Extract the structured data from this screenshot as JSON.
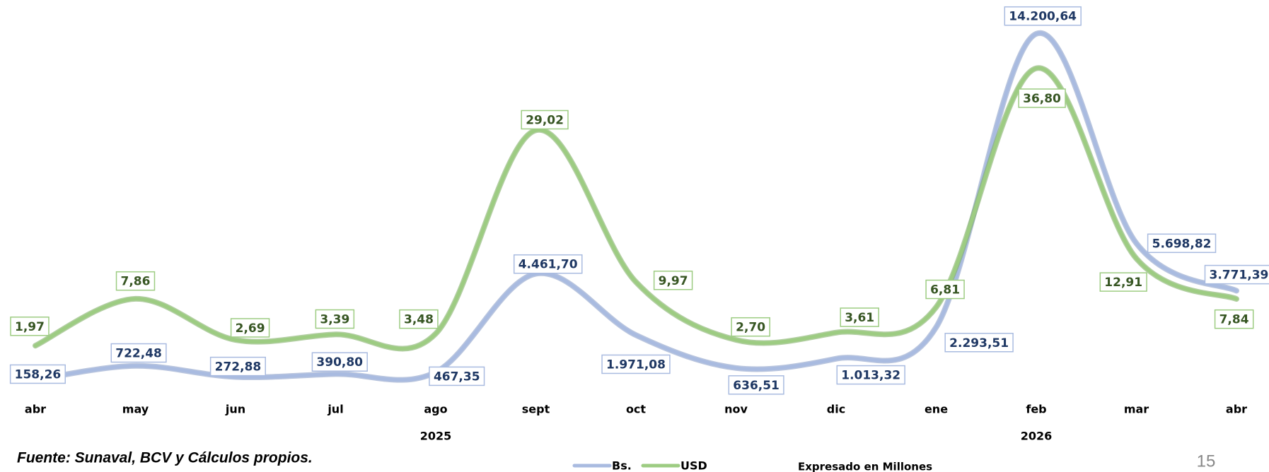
{
  "chart_data": {
    "type": "line",
    "categories": [
      "abr",
      "may",
      "jun",
      "jul",
      "ago",
      "sept",
      "oct",
      "nov",
      "dic",
      "ene",
      "feb",
      "mar",
      "abr"
    ],
    "years": [
      null,
      null,
      null,
      null,
      "2025",
      null,
      null,
      null,
      null,
      null,
      "2026",
      null,
      null
    ],
    "series": [
      {
        "name": "Bs.",
        "color": "#a9bbe0",
        "label_color": "#1f3864",
        "values": [
          158.26,
          722.48,
          272.88,
          390.8,
          467.35,
          4461.7,
          1971.08,
          636.51,
          1013.32,
          2293.51,
          14200.64,
          5698.82,
          3771.39
        ],
        "value_labels": [
          "158,26",
          "722,48",
          "272,88",
          "390,80",
          "467,35",
          "4.461,70",
          "1.971,08",
          "636,51",
          "1.013,32",
          "2.293,51",
          "14.200,64",
          "5.698,82",
          "3.771,39"
        ]
      },
      {
        "name": "USD",
        "color": "#9dcc82",
        "label_color": "#375623",
        "axis": "y2",
        "values": [
          1.97,
          7.86,
          2.69,
          3.39,
          3.48,
          29.02,
          9.97,
          2.7,
          3.61,
          6.81,
          36.8,
          12.91,
          7.84
        ],
        "value_labels": [
          "1,97",
          "7,86",
          "2,69",
          "3,39",
          "3,48",
          "29,02",
          "9,97",
          "2,70",
          "3,61",
          "6,81",
          "36,80",
          "12,91",
          "7,84"
        ]
      }
    ],
    "ylim": [
      0,
      15000
    ],
    "y2lim": [
      -2.8,
      43.6
    ],
    "source": "Fuente: Sunaval, BCV y Cálculos propios.",
    "note": "Expresado en Millones",
    "page_number": "15"
  }
}
